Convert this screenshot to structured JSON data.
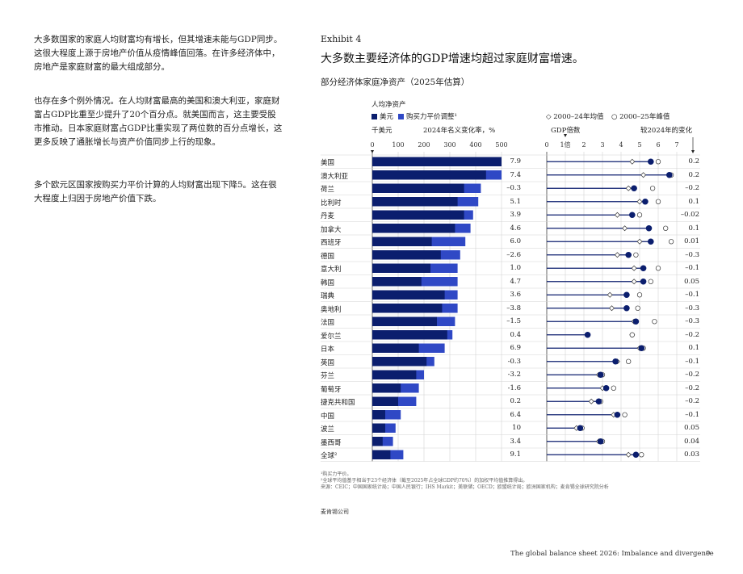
{
  "left_text": {
    "p1": "大多数国家的家庭人均财富均有增长，但其增速未能与GDP同步。这很大程度上源于房地产价值从疫情峰值回落。在许多经济体中，房地产是家庭财富的最大组成部分。",
    "p2": "也存在多个例外情况。在人均财富最高的美国和澳大利亚，家庭财富占GDP比重至少提升了20个百分点。就美国而言，这主要受股市推动。日本家庭财富占GDP比重实现了两位数的百分点增长，这更多反映了通胀增长与资产价值同步上行的现象。",
    "p3": "多个欧元区国家按购买力平价计算的人均财富出现下降5。这在很大程度上归因于房地产价值下跌。"
  },
  "exhibit": {
    "label": "Exhibit 4",
    "title": "大多数主要经济体的GDP增速均超过家庭财富增速。",
    "subtitle": "部分经济体家庭净资产（2025年估算）"
  },
  "left_chart": {
    "header": "人均净资产",
    "legend_usd": "美元",
    "legend_ppp": "购买力平价调整¹",
    "unit": "千美元",
    "change_header": "2024年名义变化率，%"
  },
  "right_chart": {
    "legend_avg": "2000–24年均值",
    "legend_peak": "2000–25年峰值",
    "axis_label": "GDP倍数",
    "change_header": "较2024年的变化"
  },
  "colors": {
    "usd": "#0b1e6e",
    "ppp": "#2f48c5",
    "grid": "#d4d4d4"
  },
  "chart_data": [
    {
      "type": "bar",
      "title": "人均净资产",
      "unit": "千美元",
      "xlim": [
        0,
        500
      ],
      "ticks": [
        0,
        100,
        200,
        300,
        400,
        500
      ],
      "categories": [
        "美国",
        "澳大利亚",
        "荷兰",
        "比利时",
        "丹麦",
        "加拿大",
        "西班牙",
        "德国",
        "意大利",
        "韩国",
        "瑞典",
        "奥地利",
        "法国",
        "爱尔兰",
        "日本",
        "英国",
        "芬兰",
        "葡萄牙",
        "捷克共和国",
        "中国",
        "波兰",
        "墨西哥",
        "全球²"
      ],
      "series": [
        {
          "name": "美元",
          "values": [
            500,
            440,
            355,
            330,
            355,
            320,
            230,
            265,
            225,
            190,
            280,
            270,
            250,
            290,
            180,
            210,
            170,
            110,
            100,
            50,
            50,
            40,
            70
          ]
        },
        {
          "name": "购买力平价调整¹",
          "values": [
            500,
            500,
            420,
            410,
            390,
            380,
            360,
            340,
            330,
            330,
            330,
            330,
            320,
            310,
            280,
            240,
            200,
            180,
            170,
            110,
            90,
            80,
            120
          ]
        }
      ],
      "change_2024_pct": [
        "7.9",
        "7.4",
        "–0.3",
        "5.1",
        "3.9",
        "4.6",
        "6.0",
        "–2.6",
        "1.0",
        "4.7",
        "3.6",
        "–3.8",
        "–1.5",
        "0.4",
        "6.9",
        "-0.3",
        "-3.2",
        "-1.6",
        "0.2",
        "6.4",
        "10",
        "3.4",
        "9.1"
      ]
    },
    {
      "type": "scatter",
      "title": "",
      "xlabel": "GDP倍数",
      "xlim": [
        0,
        7
      ],
      "ticks": [
        "0",
        "1倍",
        "2",
        "3",
        "4",
        "5",
        "6",
        "7"
      ],
      "categories": [
        "美国",
        "澳大利亚",
        "荷兰",
        "比利时",
        "丹麦",
        "加拿大",
        "西班牙",
        "德国",
        "意大利",
        "韩国",
        "瑞典",
        "奥地利",
        "法国",
        "爱尔兰",
        "日本",
        "英国",
        "芬兰",
        "葡萄牙",
        "捷克共和国",
        "中国",
        "波兰",
        "墨西哥",
        "全球²"
      ],
      "series": [
        {
          "name": "2025",
          "values": [
            5.6,
            6.6,
            4.7,
            5.3,
            4.6,
            5.5,
            5.6,
            4.4,
            5.2,
            5.2,
            4.3,
            4.3,
            4.8,
            2.2,
            5.1,
            3.7,
            2.9,
            3.2,
            2.8,
            3.8,
            1.8,
            2.9,
            4.8
          ]
        },
        {
          "name": "2000–24年均值",
          "values": [
            4.6,
            5.2,
            4.4,
            5.0,
            3.8,
            4.2,
            5.0,
            3.8,
            4.7,
            4.7,
            3.4,
            3.5,
            4.7,
            4.6,
            5.0,
            3.8,
            2.8,
            3.0,
            2.4,
            3.6,
            1.6,
            2.8,
            4.4
          ]
        },
        {
          "name": "2000–25年峰值",
          "values": [
            6.0,
            6.7,
            5.7,
            6.0,
            5.0,
            6.4,
            6.7,
            4.8,
            6.0,
            5.6,
            5.0,
            4.9,
            5.8,
            4.6,
            5.2,
            4.4,
            3.0,
            3.6,
            2.9,
            4.2,
            1.9,
            3.0,
            5.1
          ]
        }
      ],
      "change_vs_2024": [
        "0.2",
        "0.2",
        "–0.2",
        "0.1",
        "–0.02",
        "0.1",
        "0.01",
        "–0.3",
        "–0.1",
        "0.05",
        "–0.1",
        "–0.3",
        "–0.3",
        "–0.2",
        "0.1",
        "–0.1",
        "–0.2",
        "–0.2",
        "–0.2",
        "–0.1",
        "0.05",
        "0.04",
        "0.03"
      ]
    }
  ],
  "footnotes": {
    "f1": "¹购买力平价。",
    "f2": "²全球平均值基于相当于23个经济体（截至2025年占全球GDP约70%）的加权平均值推算得出。",
    "source": "来源：CEIC；中国国家统计局；中国人民银行；IHS Markit；美联储；OECD；欧盟统计局；欧洲国家机构；麦肯锡全球研究院分析"
  },
  "brand": "麦肯锡公司",
  "footer": {
    "title": "The global balance sheet 2026: Imbalance and divergence",
    "page": "9"
  }
}
